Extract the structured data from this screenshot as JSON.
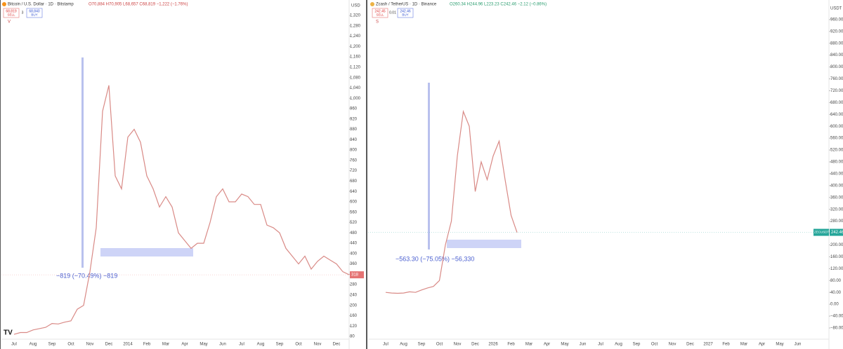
{
  "chart_data": [
    {
      "type": "line",
      "symbol": "Bitcoin / U.S. Dollar · 1D · Bitstamp",
      "ohlc": "O70,884 H70,905 L68,657 C68,819 −1,222 (−1.76%)",
      "sell_price": "68,819",
      "sell_label": "SELL",
      "spread": "3",
      "buy_price": "68,840",
      "buy_label": "BUY",
      "indicator": "V",
      "currency": "USD",
      "last_price": 318,
      "measure": "−819 (−70.49%) −819",
      "categories": [
        "Jul",
        null,
        null,
        "Aug",
        null,
        null,
        "Sep",
        null,
        null,
        "Oct",
        null,
        null,
        "Nov",
        null,
        null,
        "Dec",
        null,
        null,
        "2014",
        null,
        null,
        "Feb",
        null,
        null,
        "Mar",
        null,
        null,
        "Apr",
        null,
        null,
        "May",
        null,
        null,
        "Jun",
        null,
        null,
        "Jul",
        null,
        null,
        "Aug",
        null,
        null,
        "Sep",
        null,
        null,
        "Oct",
        null,
        null,
        "Nov",
        null,
        null,
        "Dec",
        null,
        null
      ],
      "series": [
        {
          "name": "BTCUSD",
          "color": "#d98a86",
          "values": [
            88,
            95,
            95,
            105,
            110,
            115,
            130,
            128,
            135,
            140,
            185,
            200,
            330,
            500,
            950,
            1050,
            700,
            650,
            850,
            880,
            830,
            700,
            650,
            580,
            620,
            580,
            480,
            450,
            420,
            440,
            440,
            520,
            620,
            650,
            600,
            600,
            630,
            620,
            590,
            590,
            510,
            500,
            480,
            420,
            390,
            360,
            390,
            340,
            370,
            390,
            375,
            360,
            330,
            318
          ]
        }
      ],
      "ylim": [
        53,
        1358
      ],
      "yticks": [
        80,
        120,
        160,
        200,
        240,
        280,
        320,
        360,
        400,
        440,
        480,
        520,
        560,
        600,
        640,
        680,
        720,
        760,
        800,
        840,
        880,
        920,
        960,
        {
          "value": 1000,
          "label": "1,000"
        },
        {
          "value": 1040,
          "label": "1,040"
        },
        {
          "value": 1080,
          "label": "1,080"
        },
        {
          "value": 1120,
          "label": "1,120"
        },
        {
          "value": 1160,
          "label": "1,160"
        },
        {
          "value": 1200,
          "label": "1,200"
        },
        {
          "value": 1240,
          "label": "1,240"
        },
        {
          "value": 1280,
          "label": "1,280"
        },
        {
          "value": 1320,
          "label": "1,320"
        }
      ],
      "grid": false
    },
    {
      "type": "line",
      "symbol": "Zcash / TetherUS · 1D · Binance",
      "ohlc": "O260.34 H244.96 L223.23 C242.46 −2.12 (−0.86%)",
      "sell_price": "242.45",
      "sell_label": "SELL",
      "spread": "0.01",
      "buy_price": "242.46",
      "buy_label": "BUY",
      "indicator": "S",
      "currency": "USDT",
      "last_price": 242.46,
      "last_price_label": "242.46",
      "ticker": "ZECUSDT",
      "measure": "−563.30 (−75.05%) −56,330",
      "categories": [
        "Jul",
        null,
        null,
        "Aug",
        null,
        null,
        "Sep",
        null,
        null,
        "Oct",
        null,
        null,
        "Nov",
        null,
        null,
        "Dec",
        null,
        null,
        "2026",
        null,
        null,
        "Feb",
        null,
        null,
        "Mar",
        null,
        null,
        "Apr",
        null,
        null,
        "May",
        null,
        null,
        "Jun",
        null,
        null,
        "Jul",
        null,
        null,
        "Aug",
        null,
        null,
        "Sep",
        null,
        null,
        "Oct",
        null,
        null,
        "Nov",
        null,
        null,
        "Dec",
        null,
        null,
        "2027",
        null,
        null,
        "Feb",
        null,
        null,
        "Mar",
        null,
        null,
        "Apr",
        null,
        null,
        "May",
        null,
        null,
        "Jun",
        null,
        null
      ],
      "series": [
        {
          "name": "ZECUSDT",
          "color": "#d98a86",
          "values": [
            40,
            38,
            37,
            38,
            42,
            40,
            48,
            55,
            60,
            80,
            200,
            280,
            500,
            650,
            600,
            380,
            480,
            420,
            500,
            550,
            420,
            300,
            242,
            null,
            null,
            null,
            null,
            null,
            null,
            null,
            null,
            null,
            null,
            null,
            null,
            null,
            null,
            null,
            null,
            null,
            null,
            null,
            null,
            null,
            null,
            null,
            null,
            null,
            null,
            null,
            null,
            null,
            null,
            null,
            null,
            null,
            null,
            null,
            null,
            null,
            null,
            null,
            null,
            null,
            null,
            null,
            null,
            null,
            null,
            null,
            null,
            null
          ]
        }
      ],
      "ylim": [
        -132,
        1007
      ],
      "yticks": [
        {
          "value": -80,
          "label": "−80.00"
        },
        {
          "value": -40,
          "label": "−40.00"
        },
        {
          "value": 0,
          "label": "0.00"
        },
        {
          "value": 40,
          "label": "40.00"
        },
        {
          "value": 80,
          "label": "80.00"
        },
        {
          "value": 120,
          "label": "120.00"
        },
        {
          "value": 160,
          "label": "160.00"
        },
        {
          "value": 200,
          "label": "200.00"
        },
        {
          "value": 240,
          "label": "240.00"
        },
        {
          "value": 280,
          "label": "280.00"
        },
        {
          "value": 320,
          "label": "320.00"
        },
        {
          "value": 360,
          "label": "360.00"
        },
        {
          "value": 400,
          "label": "400.00"
        },
        {
          "value": 440,
          "label": "440.00"
        },
        {
          "value": 480,
          "label": "480.00"
        },
        {
          "value": 520,
          "label": "520.00"
        },
        {
          "value": 560,
          "label": "560.00"
        },
        {
          "value": 600,
          "label": "600.00"
        },
        {
          "value": 640,
          "label": "640.00"
        },
        {
          "value": 680,
          "label": "680.00"
        },
        {
          "value": 720,
          "label": "720.00"
        },
        {
          "value": 760,
          "label": "760.00"
        },
        {
          "value": 800,
          "label": "800.00"
        },
        {
          "value": 840,
          "label": "840.00"
        },
        {
          "value": 880,
          "label": "880.00"
        },
        {
          "value": 920,
          "label": "920.00"
        },
        {
          "value": 960,
          "label": "960.00"
        }
      ],
      "grid": false
    }
  ]
}
